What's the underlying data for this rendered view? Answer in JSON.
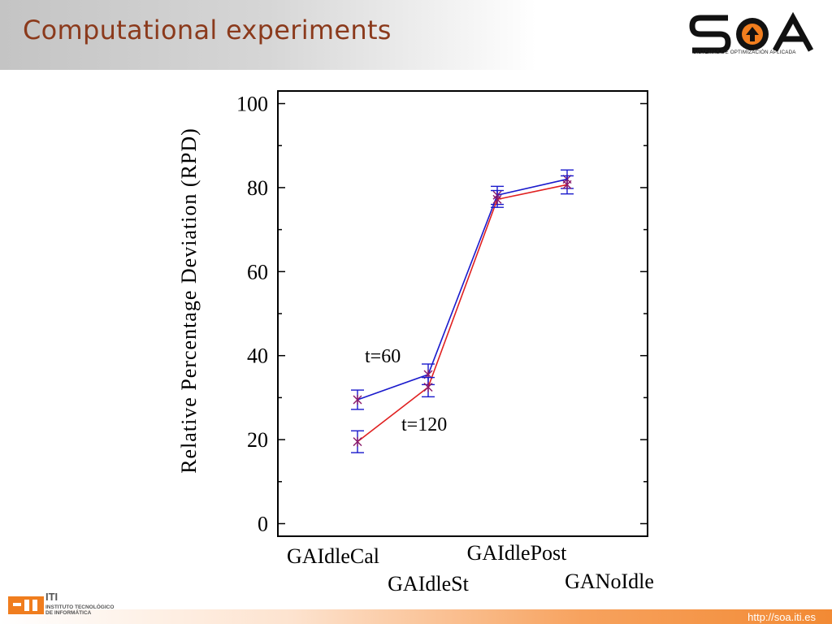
{
  "slide": {
    "title": "Computational experiments",
    "url": "http://soa.iti.es"
  },
  "brand": {
    "soa_logo_text": "SOA",
    "soa_tagline": "SISTEMAS DE OPTIMIZACIÓN APLICADA",
    "iti_name": "ITI",
    "iti_subtitle": "INSTITUTO TECNOLÓGICO\nDE INFORMÁTICA",
    "colors": {
      "title": "#8b3a1c",
      "footer_accent": "#f28a34",
      "logo_orange": "#f07d1e"
    }
  },
  "chart_data": {
    "type": "line",
    "ylabel": "Relative Percentage Deviation (RPD)",
    "xlabel": "",
    "ylim": [
      -3,
      103
    ],
    "yticks": [
      0,
      20,
      40,
      60,
      80,
      100
    ],
    "grid": false,
    "categories": [
      "GAIdleCal",
      "GAIdleSt",
      "GAIdlePost",
      "GANoIdle"
    ],
    "series": [
      {
        "name": "t=60",
        "color": "#1a1acc",
        "values": [
          29.5,
          35.5,
          78.2,
          82.0
        ],
        "err_low": [
          27.2,
          33.1,
          76.0,
          79.8
        ],
        "err_high": [
          31.8,
          38.0,
          80.3,
          84.2
        ]
      },
      {
        "name": "t=120",
        "color": "#e02020",
        "values": [
          19.5,
          32.5,
          77.2,
          80.7
        ],
        "err_low": [
          16.9,
          30.2,
          75.3,
          78.5
        ],
        "err_high": [
          22.1,
          34.8,
          79.3,
          82.8
        ]
      }
    ],
    "annotations": [
      {
        "text": "t=60"
      },
      {
        "text": "t=120"
      }
    ]
  }
}
